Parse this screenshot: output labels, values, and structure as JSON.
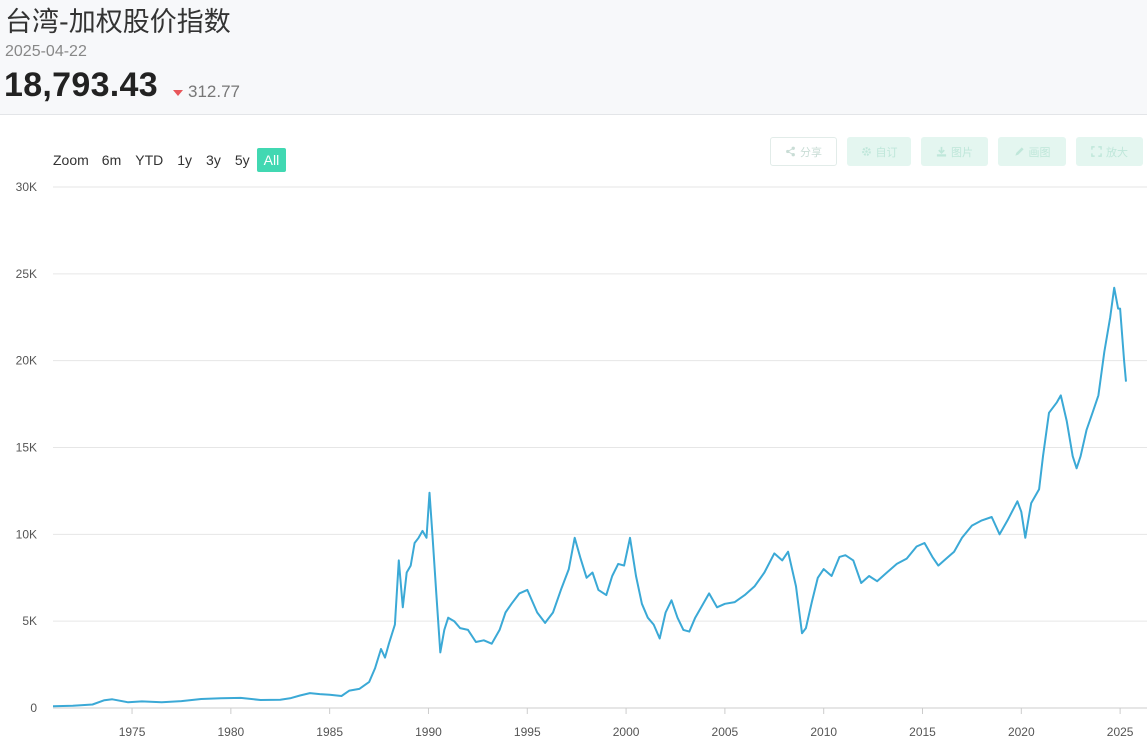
{
  "header": {
    "title": "台湾-加权股价指数",
    "date": "2025-04-22",
    "price": "18,793.43",
    "change": "312.77",
    "change_direction": "down",
    "down_color": "#e8565a"
  },
  "range_selector": {
    "label": "Zoom",
    "buttons": [
      "6m",
      "YTD",
      "1y",
      "3y",
      "5y",
      "All"
    ],
    "active": "All",
    "active_color": "#41d8b2"
  },
  "toolbar": {
    "share_label": "分享",
    "custom_label": "自订",
    "image_label": "图片",
    "draw_label": "画图",
    "expand_label": "放大"
  },
  "chart_data": {
    "type": "line",
    "title": "",
    "xlabel": "",
    "ylabel": "",
    "line_color": "#3ba9d6",
    "grid": true,
    "xlim": [
      1971.0,
      2025.5
    ],
    "ylim": [
      0,
      30000
    ],
    "x_ticks": [
      "1975",
      "1980",
      "1985",
      "1990",
      "1995",
      "2000",
      "2005",
      "2010",
      "2015",
      "2020",
      "2025"
    ],
    "y_ticks": [
      "0",
      "5K",
      "10K",
      "15K",
      "20K",
      "25K",
      "30K"
    ],
    "series": [
      {
        "name": "",
        "x": [
          1971.0,
          1972.0,
          1973.0,
          1973.6,
          1974.0,
          1974.8,
          1975.5,
          1976.5,
          1977.5,
          1978.5,
          1979.5,
          1980.5,
          1981.5,
          1982.5,
          1983.0,
          1983.5,
          1984.0,
          1984.5,
          1985.0,
          1985.6,
          1986.0,
          1986.5,
          1987.0,
          1987.3,
          1987.6,
          1987.8,
          1988.0,
          1988.3,
          1988.5,
          1988.7,
          1988.9,
          1989.1,
          1989.3,
          1989.5,
          1989.7,
          1989.9,
          1990.05,
          1990.2,
          1990.4,
          1990.6,
          1990.8,
          1991.0,
          1991.3,
          1991.6,
          1992.0,
          1992.4,
          1992.8,
          1993.2,
          1993.6,
          1993.9,
          1994.2,
          1994.6,
          1995.0,
          1995.5,
          1995.9,
          1996.3,
          1996.7,
          1997.1,
          1997.4,
          1997.7,
          1998.0,
          1998.3,
          1998.6,
          1999.0,
          1999.3,
          1999.6,
          1999.9,
          2000.2,
          2000.5,
          2000.8,
          2001.1,
          2001.4,
          2001.7,
          2002.0,
          2002.3,
          2002.6,
          2002.9,
          2003.2,
          2003.5,
          2003.8,
          2004.2,
          2004.6,
          2005.0,
          2005.5,
          2006.0,
          2006.5,
          2007.0,
          2007.5,
          2007.9,
          2008.2,
          2008.6,
          2008.9,
          2009.1,
          2009.4,
          2009.7,
          2010.0,
          2010.4,
          2010.8,
          2011.1,
          2011.5,
          2011.9,
          2012.3,
          2012.7,
          2013.2,
          2013.7,
          2014.2,
          2014.7,
          2015.1,
          2015.5,
          2015.8,
          2016.2,
          2016.6,
          2017.0,
          2017.5,
          2018.0,
          2018.5,
          2018.9,
          2019.3,
          2019.8,
          2020.0,
          2020.2,
          2020.5,
          2020.9,
          2021.1,
          2021.4,
          2021.8,
          2022.0,
          2022.3,
          2022.6,
          2022.8,
          2023.0,
          2023.3,
          2023.6,
          2023.9,
          2024.2,
          2024.5,
          2024.7,
          2024.9,
          2025.0,
          2025.2,
          2025.3
        ],
        "y": [
          100,
          130,
          200,
          450,
          500,
          330,
          380,
          330,
          400,
          520,
          560,
          580,
          460,
          470,
          560,
          720,
          860,
          800,
          760,
          690,
          1000,
          1100,
          1500,
          2300,
          3400,
          2900,
          3700,
          4800,
          8500,
          5800,
          7800,
          8200,
          9500,
          9800,
          10200,
          9800,
          12400,
          10000,
          6500,
          3200,
          4500,
          5200,
          5000,
          4600,
          4500,
          3800,
          3900,
          3700,
          4500,
          5500,
          6000,
          6600,
          6800,
          5500,
          4900,
          5500,
          6800,
          8000,
          9800,
          8600,
          7500,
          7800,
          6800,
          6500,
          7600,
          8300,
          8200,
          9800,
          7600,
          6000,
          5200,
          4800,
          4000,
          5500,
          6200,
          5200,
          4500,
          4400,
          5200,
          5800,
          6600,
          5800,
          6000,
          6100,
          6500,
          7000,
          7800,
          8900,
          8500,
          9000,
          7000,
          4300,
          4600,
          6100,
          7500,
          8000,
          7600,
          8700,
          8800,
          8500,
          7200,
          7600,
          7300,
          7800,
          8300,
          8600,
          9300,
          9500,
          8700,
          8200,
          8600,
          9000,
          9800,
          10500,
          10800,
          11000,
          10000,
          10800,
          11900,
          11300,
          9800,
          11800,
          12600,
          14500,
          17000,
          17600,
          18000,
          16500,
          14500,
          13800,
          14500,
          16000,
          17000,
          18000,
          20500,
          22500,
          24200,
          23000,
          23000,
          20000,
          18793
        ]
      }
    ]
  }
}
